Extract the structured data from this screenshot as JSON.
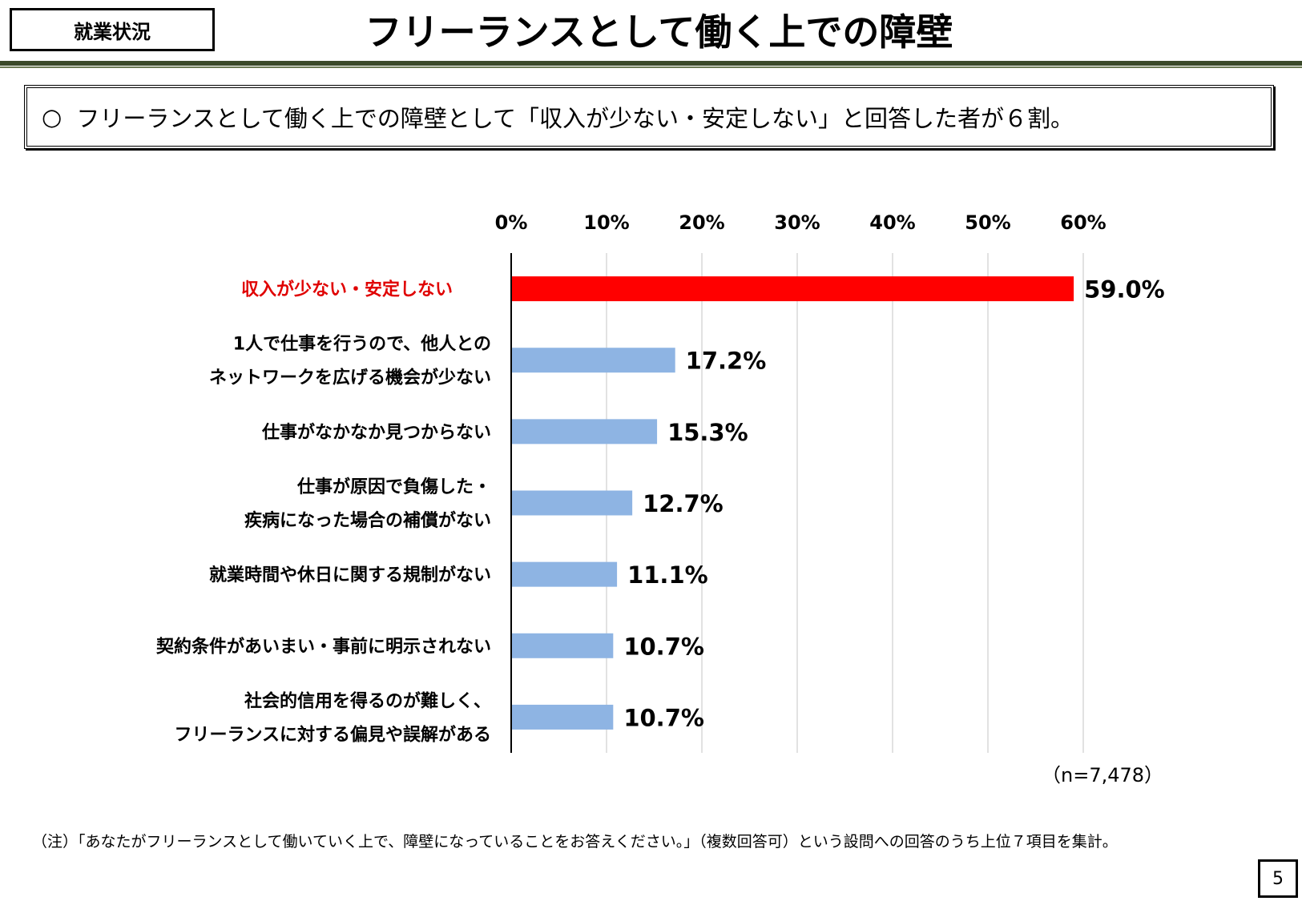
{
  "header": {
    "section_label": "就業状況",
    "title": "フリーランスとして働く上での障壁"
  },
  "summary": {
    "bullet": "○",
    "text": "フリーランスとして働く上での障壁として「収入が少ない・安定しない」と回答した者が６割。"
  },
  "chart_data": {
    "type": "bar",
    "orientation": "horizontal",
    "categories": [
      [
        "収入が少ない・安定しない"
      ],
      [
        "1人で仕事を行うので、他人との",
        "ネットワークを広げる機会が少ない"
      ],
      [
        "仕事がなかなか見つからない"
      ],
      [
        "仕事が原因で負傷した・",
        "疾病になった場合の補償がない"
      ],
      [
        "就業時間や休日に関する規制がない"
      ],
      [
        "契約条件があいまい・事前に明示されない"
      ],
      [
        "社会的信用を得るのが難しく、",
        "フリーランスに対する偏見や誤解がある"
      ]
    ],
    "values": [
      59.0,
      17.2,
      15.3,
      12.7,
      11.1,
      10.7,
      10.7
    ],
    "value_labels": [
      "59.0%",
      "17.2%",
      "15.3%",
      "12.7%",
      "11.1%",
      "10.7%",
      "10.7%"
    ],
    "xlim": [
      0,
      60
    ],
    "ticks": [
      0,
      10,
      20,
      30,
      40,
      50,
      60
    ],
    "tick_labels": [
      "0%",
      "10%",
      "20%",
      "30%",
      "40%",
      "50%",
      "60%"
    ],
    "axis_position": "top",
    "grid": true,
    "highlight_index": 0,
    "colors": {
      "highlight": "#ff0000",
      "bar": "#8eb4e3",
      "highlight_label": "#e00000",
      "grid": "#d9d9d9"
    },
    "sample_note": "（n=7,478）"
  },
  "footnote": "（注）「あなたがフリーランスとして働いていく上で、障壁になっていることをお答えください。」（複数回答可）という設問への回答のうち上位７項目を集計。",
  "page_number": "5"
}
